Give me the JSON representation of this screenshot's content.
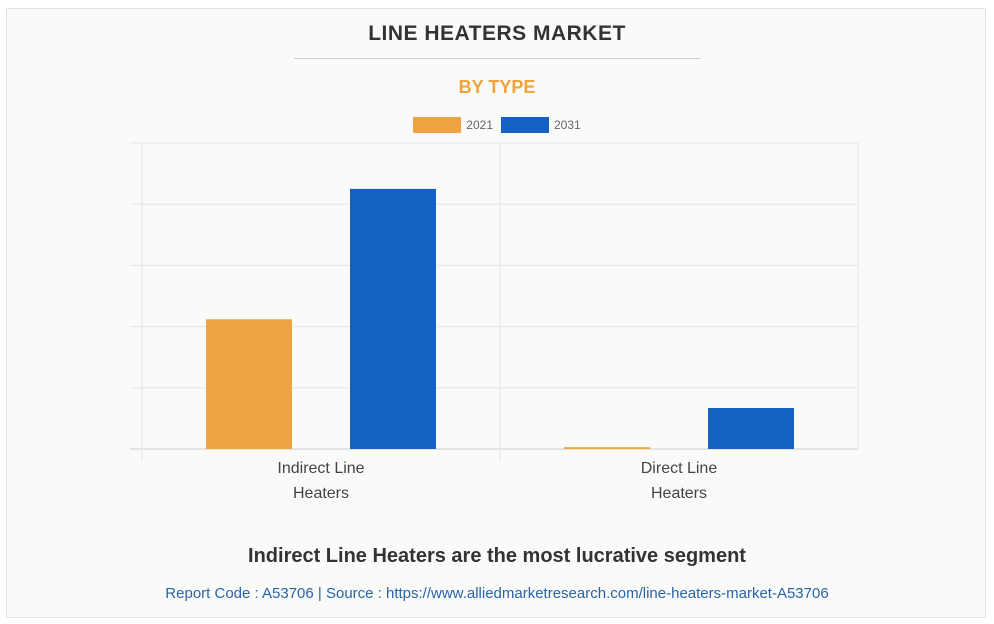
{
  "chart_data": {
    "type": "bar",
    "title": "LINE HEATERS MARKET",
    "subtitle": "BY TYPE",
    "categories": [
      "Indirect Line Heaters",
      "Direct Line Heaters"
    ],
    "category_lines": [
      [
        "Indirect Line",
        "Heaters"
      ],
      [
        "Direct Line",
        "Heaters"
      ]
    ],
    "series": [
      {
        "name": "2021",
        "color": "#f0a344",
        "values": [
          2.12,
          0.03
        ]
      },
      {
        "name": "2031",
        "color": "#1463c3",
        "values": [
          4.25,
          0.67
        ]
      }
    ],
    "ylim": [
      0,
      5
    ],
    "y_gridline_step": 1,
    "y_tick_labels_shown": false,
    "grid": true,
    "legend_position": "top-center",
    "xlabel": "",
    "ylabel": ""
  },
  "footer": {
    "headline": "Indirect Line Heaters are the most lucrative segment",
    "source": "Report Code : A53706  |  Source : https://www.alliedmarketresearch.com/line-heaters-market-A53706"
  }
}
